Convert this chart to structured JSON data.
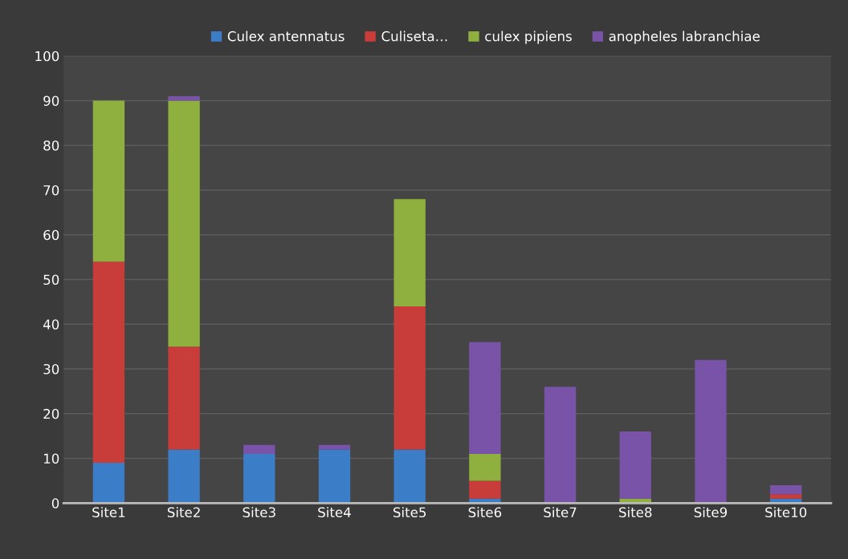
{
  "chart_data": {
    "type": "bar",
    "stacked": true,
    "categories": [
      "Site1",
      "Site2",
      "Site3",
      "Site4",
      "Site5",
      "Site6",
      "Site7",
      "Site8",
      "Site9",
      "Site10"
    ],
    "series": [
      {
        "name": "Culex antennatus",
        "color": "#3c7dc8",
        "values": [
          9,
          12,
          11,
          12,
          12,
          1,
          0,
          0,
          0,
          1
        ]
      },
      {
        "name": "Culiseta…",
        "color": "#c83c3a",
        "values": [
          45,
          23,
          0,
          0,
          32,
          4,
          0,
          0,
          0,
          1
        ]
      },
      {
        "name": "culex pipiens",
        "color": "#8fb03e",
        "values": [
          36,
          55,
          0,
          0,
          24,
          6,
          0,
          1,
          0,
          0
        ]
      },
      {
        "name": "anopheles labranchiae",
        "color": "#7953a8",
        "values": [
          0,
          1,
          2,
          1,
          0,
          25,
          26,
          15,
          32,
          2
        ]
      }
    ],
    "ylim": [
      0,
      100
    ],
    "yticks": [
      0,
      10,
      20,
      30,
      40,
      50,
      60,
      70,
      80,
      90,
      100
    ],
    "grid": "y",
    "legend": "top"
  }
}
